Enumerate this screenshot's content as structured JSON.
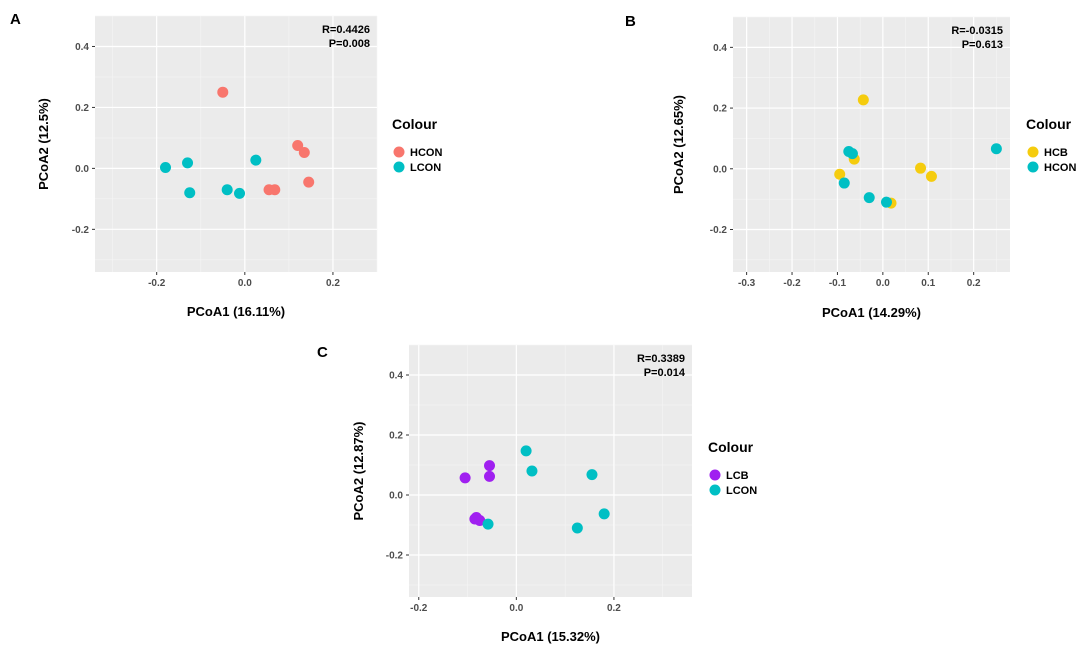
{
  "chart_data": [
    {
      "type": "scatter",
      "panel_label": "A",
      "xlabel": "PCoA1 (16.11%)",
      "ylabel": "PCoA2 (12.5%)",
      "xlim": [
        -0.34,
        0.3
      ],
      "ylim": [
        -0.34,
        0.5
      ],
      "xticks": [
        -0.2,
        0.0,
        0.2
      ],
      "yticks": [
        -0.2,
        0.0,
        0.2,
        0.4
      ],
      "xtick_labels": [
        "-0.2",
        "0.0",
        "0.2"
      ],
      "ytick_labels": [
        "-0.2",
        "0.0",
        "0.2",
        "0.4"
      ],
      "grid": true,
      "annotation": [
        "R=0.4426",
        "P=0.008"
      ],
      "legend_title": "Colour",
      "series": [
        {
          "name": "HCON",
          "color": "#F8766D",
          "points": [
            [
              -0.05,
              0.25
            ],
            [
              0.12,
              0.075
            ],
            [
              0.135,
              0.052
            ],
            [
              0.145,
              -0.045
            ],
            [
              0.055,
              -0.07
            ],
            [
              0.068,
              -0.07
            ]
          ]
        },
        {
          "name": "LCON",
          "color": "#00BFC4",
          "points": [
            [
              -0.18,
              0.003
            ],
            [
              -0.13,
              0.018
            ],
            [
              -0.125,
              -0.08
            ],
            [
              -0.04,
              -0.07
            ],
            [
              -0.012,
              -0.082
            ],
            [
              0.025,
              0.027
            ]
          ]
        }
      ]
    },
    {
      "type": "scatter",
      "panel_label": "B",
      "xlabel": "PCoA1 (14.29%)",
      "ylabel": "PCoA2 (12.65%)",
      "xlim": [
        -0.33,
        0.28
      ],
      "ylim": [
        -0.34,
        0.5
      ],
      "xticks": [
        -0.3,
        -0.2,
        -0.1,
        0.0,
        0.1,
        0.2
      ],
      "yticks": [
        -0.2,
        0.0,
        0.2,
        0.4
      ],
      "xtick_labels": [
        "-0.3",
        "-0.2",
        "-0.1",
        "0.0",
        "0.1",
        "0.2"
      ],
      "ytick_labels": [
        "-0.2",
        "0.0",
        "0.2",
        "0.4"
      ],
      "grid": true,
      "annotation": [
        "R=-0.0315",
        "P=0.613"
      ],
      "legend_title": "Colour",
      "series": [
        {
          "name": "HCB",
          "color": "#F5CC0E",
          "points": [
            [
              -0.043,
              0.227
            ],
            [
              -0.063,
              0.032
            ],
            [
              -0.095,
              -0.018
            ],
            [
              0.018,
              -0.113
            ],
            [
              0.083,
              0.002
            ],
            [
              0.107,
              -0.025
            ]
          ]
        },
        {
          "name": "HCON",
          "color": "#00BFC4",
          "points": [
            [
              -0.075,
              0.057
            ],
            [
              -0.067,
              0.05
            ],
            [
              -0.085,
              -0.047
            ],
            [
              -0.03,
              -0.095
            ],
            [
              0.008,
              -0.11
            ],
            [
              0.25,
              0.066
            ]
          ]
        }
      ]
    },
    {
      "type": "scatter",
      "panel_label": "C",
      "xlabel": "PCoA1 (15.32%)",
      "ylabel": "PCoA2 (12.87%)",
      "xlim": [
        -0.22,
        0.36
      ],
      "ylim": [
        -0.34,
        0.5
      ],
      "xticks": [
        -0.2,
        0.0,
        0.2
      ],
      "yticks": [
        -0.2,
        0.0,
        0.2,
        0.4
      ],
      "xtick_labels": [
        "-0.2",
        "0.0",
        "0.2"
      ],
      "ytick_labels": [
        "-0.2",
        "0.0",
        "0.2",
        "0.4"
      ],
      "grid": true,
      "annotation": [
        "R=0.3389",
        "P=0.014"
      ],
      "legend_title": "Colour",
      "series": [
        {
          "name": "LCB",
          "color": "#A020F0",
          "points": [
            [
              -0.105,
              0.057
            ],
            [
              -0.055,
              0.098
            ],
            [
              -0.055,
              0.062
            ],
            [
              -0.082,
              -0.075
            ],
            [
              -0.085,
              -0.08
            ],
            [
              -0.075,
              -0.085
            ]
          ]
        },
        {
          "name": "LCON",
          "color": "#00BFC4",
          "points": [
            [
              0.02,
              0.147
            ],
            [
              0.032,
              0.08
            ],
            [
              0.155,
              0.068
            ],
            [
              0.18,
              -0.063
            ],
            [
              0.125,
              -0.11
            ],
            [
              -0.058,
              -0.097
            ]
          ]
        }
      ]
    }
  ]
}
